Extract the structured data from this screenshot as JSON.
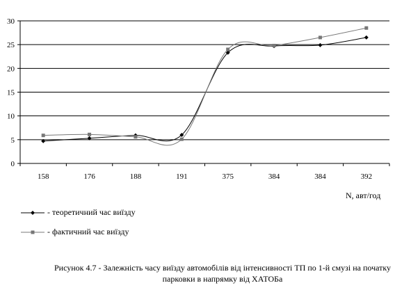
{
  "chart_data": {
    "type": "line",
    "categories": [
      "158",
      "176",
      "188",
      "191",
      "375",
      "384",
      "384",
      "392"
    ],
    "series": [
      {
        "name": "- теоретичний час виїзду",
        "values": [
          4.7,
          5.3,
          5.9,
          6.0,
          23.3,
          24.7,
          24.9,
          26.5
        ],
        "color": "#000000",
        "marker": "diamond"
      },
      {
        "name": "- фактичний час виїзду",
        "values": [
          5.9,
          6.1,
          5.6,
          5.1,
          24.0,
          24.8,
          26.5,
          28.5
        ],
        "color": "#777777",
        "marker": "square"
      }
    ],
    "ylim": [
      0,
      30
    ],
    "yticks": [
      0,
      5,
      10,
      15,
      20,
      25,
      30
    ],
    "xlabel": "N, авт/год",
    "ylabel": "",
    "grid": "horizontal",
    "legend": "bottom-left",
    "caption": "Рисунок 4.7 - Залежність часу виїзду автомобілів від інтенсивності ТП по 1-й смузі на початку парковки в напрямку від ХАТОБа"
  }
}
